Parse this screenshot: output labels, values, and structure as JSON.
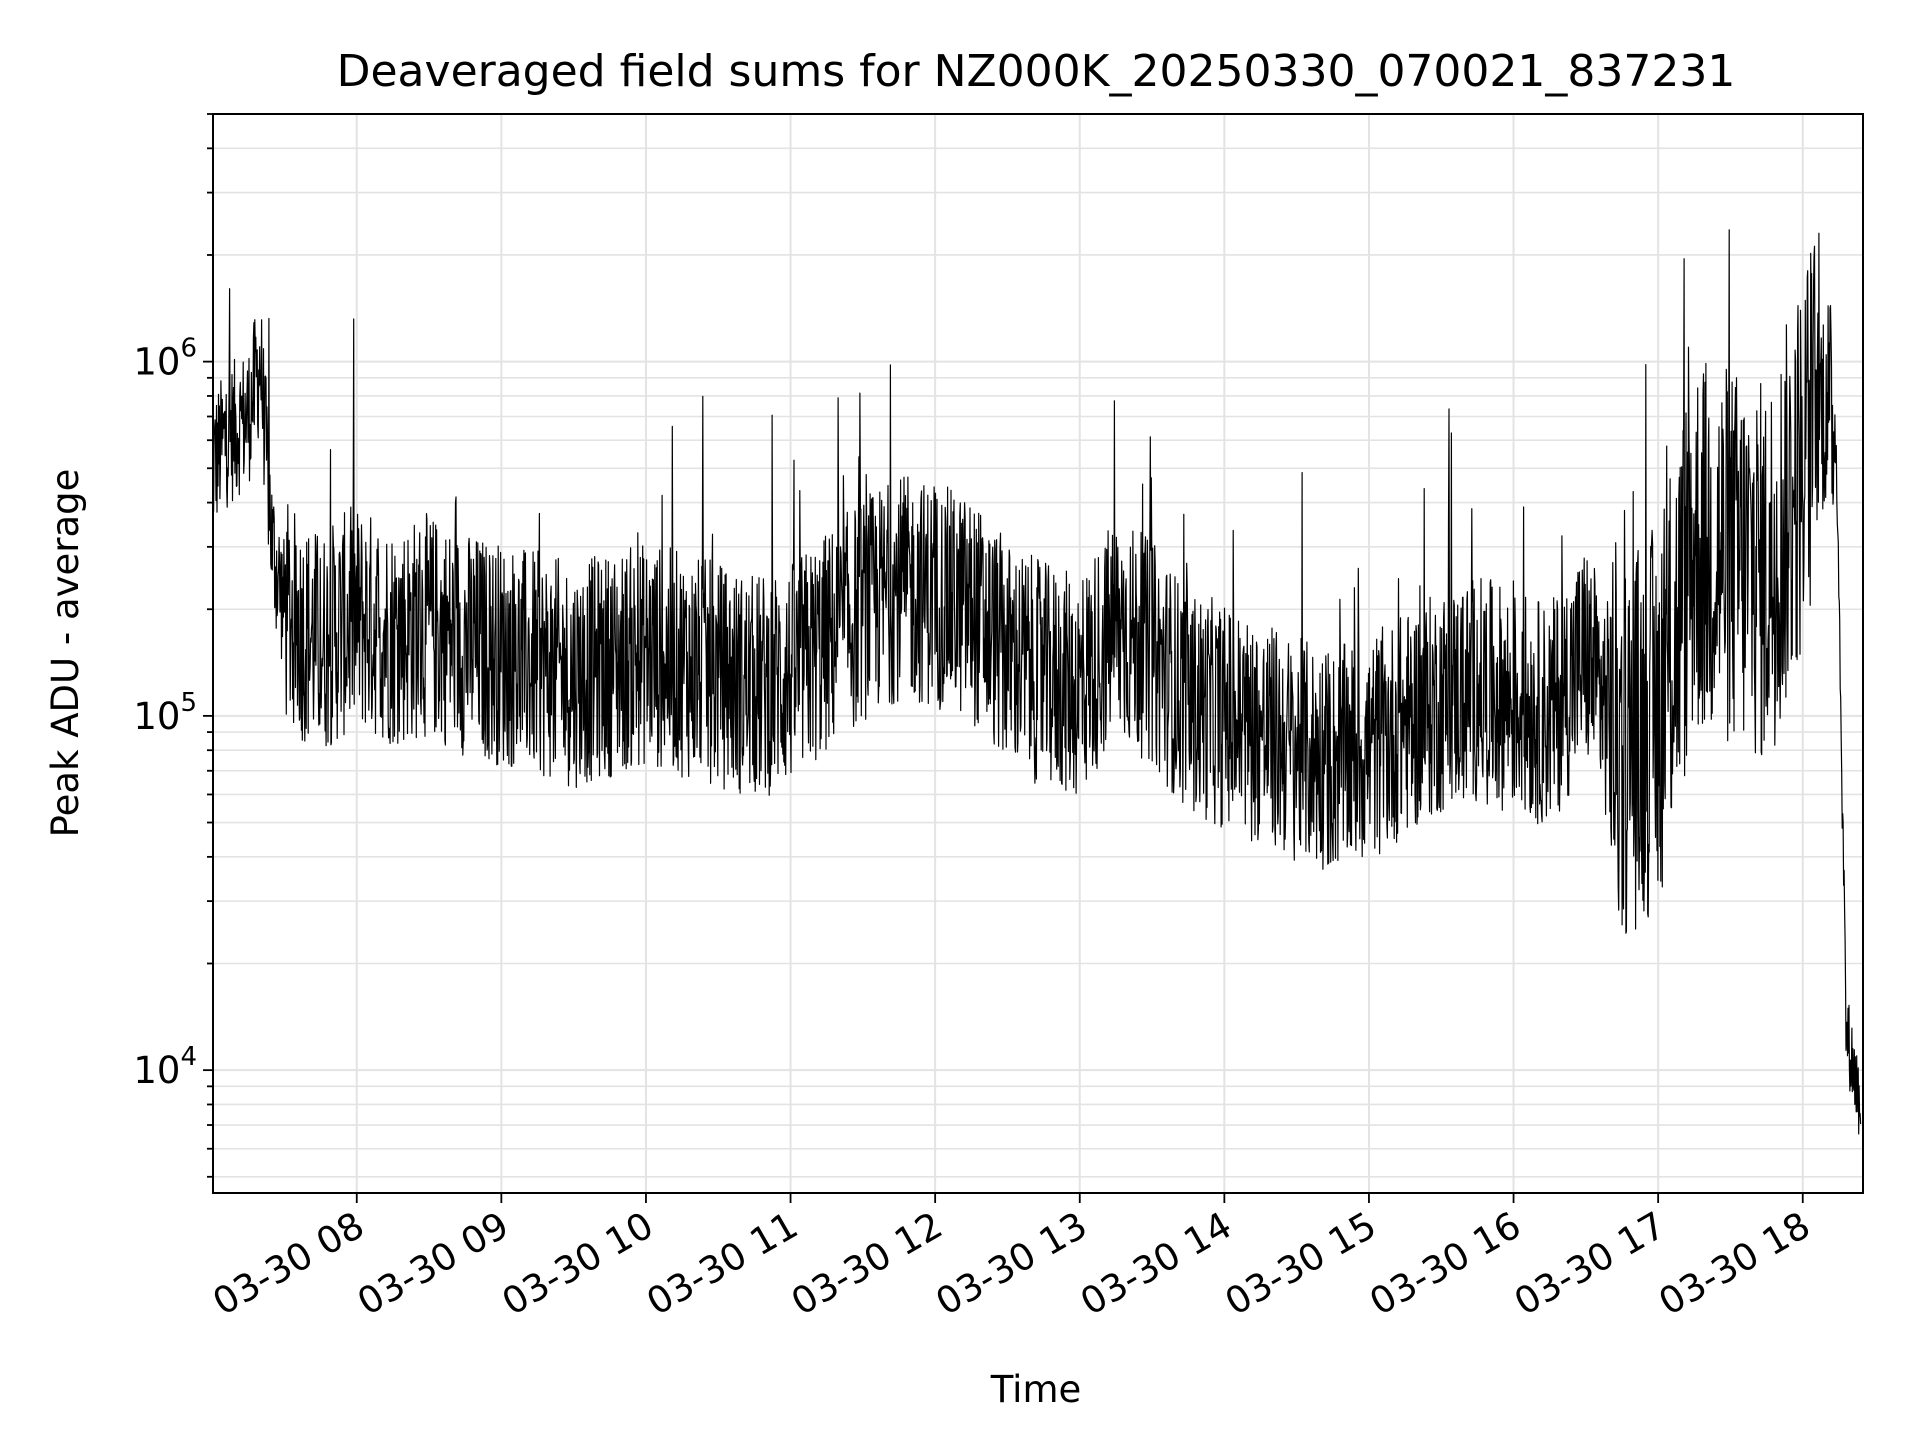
{
  "chart_data": {
    "type": "line",
    "title": "Deaveraged field sums for NZ000K_20250330_070021_837231",
    "xlabel": "Time",
    "ylabel": "Peak ADU - average",
    "yscale": "log",
    "ylim": [
      4500,
      5000000
    ],
    "xlim": [
      "2025-03-30 07:00:21",
      "2025-03-30 18:25:00"
    ],
    "grid": true,
    "series_color": "#000000",
    "x_ticks": [
      {
        "value": "2025-03-30 08:00",
        "label": "03-30 08"
      },
      {
        "value": "2025-03-30 09:00",
        "label": "03-30 09"
      },
      {
        "value": "2025-03-30 10:00",
        "label": "03-30 10"
      },
      {
        "value": "2025-03-30 11:00",
        "label": "03-30 11"
      },
      {
        "value": "2025-03-30 12:00",
        "label": "03-30 12"
      },
      {
        "value": "2025-03-30 13:00",
        "label": "03-30 13"
      },
      {
        "value": "2025-03-30 14:00",
        "label": "03-30 14"
      },
      {
        "value": "2025-03-30 15:00",
        "label": "03-30 15"
      },
      {
        "value": "2025-03-30 16:00",
        "label": "03-30 16"
      },
      {
        "value": "2025-03-30 17:00",
        "label": "03-30 17"
      },
      {
        "value": "2025-03-30 18:00",
        "label": "03-30 18"
      }
    ],
    "y_ticks": [
      {
        "value": 10000,
        "base": "10",
        "exp": "4"
      },
      {
        "value": 100000,
        "base": "10",
        "exp": "5"
      },
      {
        "value": 1000000,
        "base": "10",
        "exp": "6"
      }
    ],
    "series": [
      {
        "x": [
          "2025-03-30 07:00",
          "2025-03-30 07:05",
          "2025-03-30 07:10",
          "2025-03-30 07:15",
          "2025-03-30 07:20",
          "2025-03-30 07:25",
          "2025-03-30 07:30",
          "2025-03-30 07:35",
          "2025-03-30 07:40",
          "2025-03-30 07:45",
          "2025-03-30 07:50",
          "2025-03-30 07:55",
          "2025-03-30 08:00",
          "2025-03-30 08:15",
          "2025-03-30 08:30",
          "2025-03-30 08:45",
          "2025-03-30 09:00",
          "2025-03-30 09:15",
          "2025-03-30 09:30",
          "2025-03-30 09:45",
          "2025-03-30 10:00",
          "2025-03-30 10:15",
          "2025-03-30 10:30",
          "2025-03-30 10:45",
          "2025-03-30 11:00",
          "2025-03-30 11:15",
          "2025-03-30 11:30",
          "2025-03-30 11:45",
          "2025-03-30 12:00",
          "2025-03-30 12:15",
          "2025-03-30 12:30",
          "2025-03-30 12:45",
          "2025-03-30 13:00",
          "2025-03-30 13:15",
          "2025-03-30 13:30",
          "2025-03-30 13:45",
          "2025-03-30 14:00",
          "2025-03-30 14:15",
          "2025-03-30 14:30",
          "2025-03-30 14:45",
          "2025-03-30 15:00",
          "2025-03-30 15:15",
          "2025-03-30 15:30",
          "2025-03-30 15:45",
          "2025-03-30 16:00",
          "2025-03-30 16:15",
          "2025-03-30 16:30",
          "2025-03-30 16:45",
          "2025-03-30 17:00",
          "2025-03-30 17:15",
          "2025-03-30 17:30",
          "2025-03-30 17:45",
          "2025-03-30 17:55",
          "2025-03-30 18:05",
          "2025-03-30 18:10",
          "2025-03-30 18:14",
          "2025-03-30 18:18",
          "2025-03-30 18:24"
        ],
        "y": [
          500000,
          600000,
          650000,
          700000,
          1000000,
          300000,
          200000,
          180000,
          170000,
          160000,
          170000,
          180000,
          190000,
          170000,
          180000,
          160000,
          150000,
          140000,
          130000,
          140000,
          150000,
          140000,
          130000,
          120000,
          130000,
          160000,
          200000,
          230000,
          220000,
          200000,
          150000,
          130000,
          120000,
          180000,
          150000,
          110000,
          100000,
          90000,
          80000,
          75000,
          80000,
          95000,
          110000,
          120000,
          110000,
          100000,
          150000,
          80000,
          100000,
          300000,
          280000,
          250000,
          400000,
          700000,
          800000,
          600000,
          13000,
          8000
        ]
      }
    ]
  }
}
